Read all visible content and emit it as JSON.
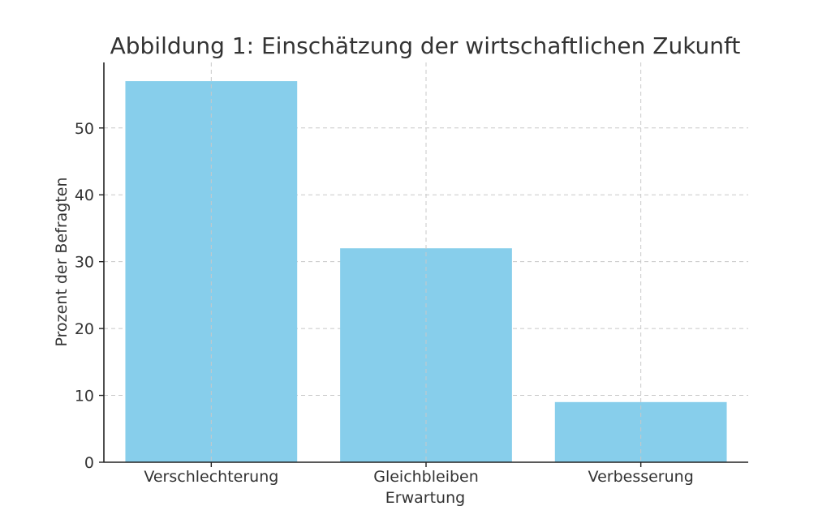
{
  "chart_data": {
    "type": "bar",
    "title": "Abbildung 1: Einschätzung der wirtschaftlichen Zukunft",
    "xlabel": "Erwartung",
    "ylabel": "Prozent der Befragten",
    "categories": [
      "Verschlechterung",
      "Gleichbleiben",
      "Verbesserung"
    ],
    "values": [
      57,
      32,
      9
    ],
    "ylim": [
      0,
      59.8
    ],
    "yticks": [
      0,
      10,
      20,
      30,
      40,
      50
    ],
    "grid": true,
    "bar_color": "#87ceeb"
  }
}
